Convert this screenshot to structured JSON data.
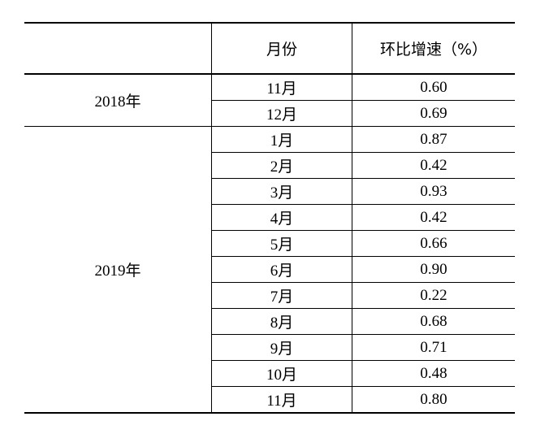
{
  "header": {
    "month": "月份",
    "growth": "环比增速（%）"
  },
  "groups": [
    {
      "year": "2018年",
      "rows": [
        {
          "month": "11月",
          "growth": "0.60"
        },
        {
          "month": "12月",
          "growth": "0.69"
        }
      ]
    },
    {
      "year": "2019年",
      "rows": [
        {
          "month": "1月",
          "growth": "0.87"
        },
        {
          "month": "2月",
          "growth": "0.42"
        },
        {
          "month": "3月",
          "growth": "0.93"
        },
        {
          "month": "4月",
          "growth": "0.42"
        },
        {
          "month": "5月",
          "growth": "0.66"
        },
        {
          "month": "6月",
          "growth": "0.90"
        },
        {
          "month": "7月",
          "growth": "0.22"
        },
        {
          "month": "8月",
          "growth": "0.68"
        },
        {
          "month": "9月",
          "growth": "0.71"
        },
        {
          "month": "10月",
          "growth": "0.48"
        },
        {
          "month": "11月",
          "growth": "0.80"
        }
      ]
    }
  ]
}
